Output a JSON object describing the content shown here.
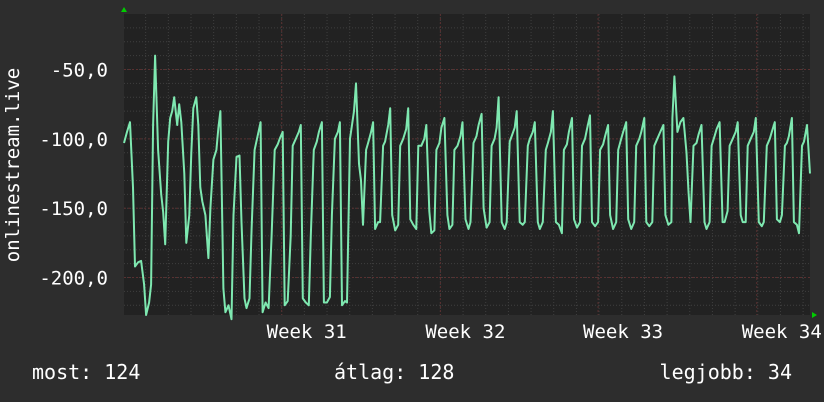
{
  "chart_data": {
    "type": "line",
    "title": "",
    "xlabel": "",
    "ylabel": "onlinestream.live",
    "ylim": [
      -227,
      -10
    ],
    "xlim": [
      0,
      683
    ],
    "yticks": [
      {
        "value": -50,
        "label": "-50,0"
      },
      {
        "value": -100,
        "label": "-100,0"
      },
      {
        "value": -150,
        "label": "-150,0"
      },
      {
        "value": -200,
        "label": "-200,0"
      }
    ],
    "xticks": [
      {
        "value": 157,
        "label": "Week 31"
      },
      {
        "value": 315,
        "label": "Week 32"
      },
      {
        "value": 472,
        "label": "Week 33"
      },
      {
        "value": 630,
        "label": "Week 34"
      }
    ],
    "grid": true,
    "series": [
      {
        "color": "#7ee8b0",
        "points": [
          [
            0,
            -103
          ],
          [
            3,
            -95
          ],
          [
            6,
            -88
          ],
          [
            9,
            -135
          ],
          [
            11,
            -192
          ],
          [
            14,
            -189
          ],
          [
            17,
            -188
          ],
          [
            20,
            -205
          ],
          [
            22,
            -227
          ],
          [
            25,
            -218
          ],
          [
            27,
            -205
          ],
          [
            29,
            -90
          ],
          [
            31,
            -40
          ],
          [
            34,
            -108
          ],
          [
            37,
            -140
          ],
          [
            39,
            -153
          ],
          [
            41,
            -176
          ],
          [
            44,
            -102
          ],
          [
            46,
            -85
          ],
          [
            48,
            -80
          ],
          [
            50,
            -70
          ],
          [
            53,
            -90
          ],
          [
            55,
            -75
          ],
          [
            57,
            -88
          ],
          [
            60,
            -125
          ],
          [
            62,
            -175
          ],
          [
            65,
            -155
          ],
          [
            67,
            -110
          ],
          [
            69,
            -78
          ],
          [
            72,
            -70
          ],
          [
            74,
            -90
          ],
          [
            76,
            -135
          ],
          [
            78,
            -145
          ],
          [
            81,
            -155
          ],
          [
            84,
            -186
          ],
          [
            86,
            -150
          ],
          [
            89,
            -115
          ],
          [
            92,
            -108
          ],
          [
            94,
            -92
          ],
          [
            96,
            -80
          ],
          [
            99,
            -208
          ],
          [
            101,
            -225
          ],
          [
            104,
            -220
          ],
          [
            107,
            -230
          ],
          [
            109,
            -155
          ],
          [
            112,
            -113
          ],
          [
            115,
            -112
          ],
          [
            117,
            -160
          ],
          [
            120,
            -215
          ],
          [
            122,
            -222
          ],
          [
            125,
            -215
          ],
          [
            127,
            -165
          ],
          [
            130,
            -108
          ],
          [
            133,
            -98
          ],
          [
            136,
            -88
          ],
          [
            138,
            -225
          ],
          [
            141,
            -218
          ],
          [
            144,
            -222
          ],
          [
            147,
            -170
          ],
          [
            150,
            -108
          ],
          [
            153,
            -104
          ],
          [
            155,
            -100
          ],
          [
            158,
            -95
          ],
          [
            160,
            -220
          ],
          [
            163,
            -217
          ],
          [
            166,
            -170
          ],
          [
            168,
            -105
          ],
          [
            171,
            -100
          ],
          [
            174,
            -95
          ],
          [
            176,
            -90
          ],
          [
            178,
            -215
          ],
          [
            181,
            -218
          ],
          [
            184,
            -220
          ],
          [
            186,
            -170
          ],
          [
            189,
            -108
          ],
          [
            192,
            -102
          ],
          [
            194,
            -95
          ],
          [
            197,
            -88
          ],
          [
            199,
            -218
          ],
          [
            202,
            -218
          ],
          [
            205,
            -214
          ],
          [
            207,
            -155
          ],
          [
            210,
            -100
          ],
          [
            213,
            -95
          ],
          [
            215,
            -88
          ],
          [
            217,
            -220
          ],
          [
            220,
            -217
          ],
          [
            222,
            -218
          ],
          [
            225,
            -100
          ],
          [
            227,
            -90
          ],
          [
            229,
            -80
          ],
          [
            231,
            -60
          ],
          [
            234,
            -118
          ],
          [
            236,
            -130
          ],
          [
            238,
            -162
          ],
          [
            241,
            -108
          ],
          [
            243,
            -103
          ],
          [
            246,
            -95
          ],
          [
            248,
            -88
          ],
          [
            250,
            -165
          ],
          [
            253,
            -160
          ],
          [
            255,
            -160
          ],
          [
            258,
            -105
          ],
          [
            260,
            -102
          ],
          [
            263,
            -90
          ],
          [
            265,
            -78
          ],
          [
            267,
            -155
          ],
          [
            270,
            -166
          ],
          [
            273,
            -162
          ],
          [
            275,
            -105
          ],
          [
            278,
            -100
          ],
          [
            281,
            -93
          ],
          [
            283,
            -78
          ],
          [
            285,
            -158
          ],
          [
            288,
            -162
          ],
          [
            291,
            -165
          ],
          [
            293,
            -105
          ],
          [
            296,
            -105
          ],
          [
            299,
            -100
          ],
          [
            301,
            -90
          ],
          [
            304,
            -152
          ],
          [
            306,
            -168
          ],
          [
            309,
            -166
          ],
          [
            311,
            -108
          ],
          [
            314,
            -103
          ],
          [
            316,
            -92
          ],
          [
            319,
            -85
          ],
          [
            322,
            -155
          ],
          [
            324,
            -165
          ],
          [
            327,
            -162
          ],
          [
            329,
            -108
          ],
          [
            332,
            -105
          ],
          [
            335,
            -98
          ],
          [
            337,
            -88
          ],
          [
            340,
            -158
          ],
          [
            343,
            -165
          ],
          [
            345,
            -160
          ],
          [
            348,
            -103
          ],
          [
            351,
            -98
          ],
          [
            353,
            -90
          ],
          [
            356,
            -82
          ],
          [
            358,
            -150
          ],
          [
            361,
            -164
          ],
          [
            364,
            -160
          ],
          [
            366,
            -105
          ],
          [
            369,
            -100
          ],
          [
            371,
            -92
          ],
          [
            373,
            -70
          ],
          [
            376,
            -160
          ],
          [
            379,
            -165
          ],
          [
            381,
            -160
          ],
          [
            384,
            -102
          ],
          [
            386,
            -98
          ],
          [
            389,
            -92
          ],
          [
            391,
            -80
          ],
          [
            394,
            -160
          ],
          [
            397,
            -162
          ],
          [
            399,
            -160
          ],
          [
            402,
            -105
          ],
          [
            404,
            -100
          ],
          [
            407,
            -95
          ],
          [
            409,
            -88
          ],
          [
            412,
            -160
          ],
          [
            414,
            -165
          ],
          [
            417,
            -160
          ],
          [
            420,
            -108
          ],
          [
            422,
            -103
          ],
          [
            425,
            -95
          ],
          [
            427,
            -80
          ],
          [
            430,
            -160
          ],
          [
            433,
            -162
          ],
          [
            436,
            -168
          ],
          [
            438,
            -108
          ],
          [
            441,
            -104
          ],
          [
            443,
            -95
          ],
          [
            446,
            -85
          ],
          [
            448,
            -158
          ],
          [
            451,
            -164
          ],
          [
            454,
            -160
          ],
          [
            456,
            -105
          ],
          [
            459,
            -100
          ],
          [
            461,
            -93
          ],
          [
            464,
            -83
          ],
          [
            466,
            -160
          ],
          [
            469,
            -163
          ],
          [
            472,
            -160
          ],
          [
            474,
            -108
          ],
          [
            477,
            -104
          ],
          [
            479,
            -98
          ],
          [
            482,
            -90
          ],
          [
            484,
            -155
          ],
          [
            487,
            -165
          ],
          [
            490,
            -160
          ],
          [
            492,
            -108
          ],
          [
            495,
            -100
          ],
          [
            497,
            -95
          ],
          [
            500,
            -88
          ],
          [
            502,
            -158
          ],
          [
            505,
            -165
          ],
          [
            508,
            -160
          ],
          [
            510,
            -105
          ],
          [
            513,
            -100
          ],
          [
            515,
            -95
          ],
          [
            518,
            -85
          ],
          [
            520,
            -160
          ],
          [
            523,
            -163
          ],
          [
            526,
            -160
          ],
          [
            528,
            -105
          ],
          [
            531,
            -100
          ],
          [
            534,
            -95
          ],
          [
            537,
            -90
          ],
          [
            539,
            -155
          ],
          [
            542,
            -162
          ],
          [
            545,
            -160
          ],
          [
            546,
            -85
          ],
          [
            548,
            -55
          ],
          [
            551,
            -95
          ],
          [
            554,
            -88
          ],
          [
            557,
            -85
          ],
          [
            560,
            -110
          ],
          [
            562,
            -138
          ],
          [
            564,
            -160
          ],
          [
            567,
            -105
          ],
          [
            570,
            -103
          ],
          [
            572,
            -97
          ],
          [
            575,
            -90
          ],
          [
            578,
            -160
          ],
          [
            580,
            -165
          ],
          [
            583,
            -160
          ],
          [
            585,
            -105
          ],
          [
            588,
            -98
          ],
          [
            590,
            -93
          ],
          [
            593,
            -88
          ],
          [
            596,
            -160
          ],
          [
            598,
            -160
          ],
          [
            601,
            -152
          ],
          [
            603,
            -105
          ],
          [
            606,
            -100
          ],
          [
            609,
            -95
          ],
          [
            611,
            -88
          ],
          [
            614,
            -155
          ],
          [
            616,
            -160
          ],
          [
            619,
            -160
          ],
          [
            621,
            -105
          ],
          [
            624,
            -100
          ],
          [
            627,
            -95
          ],
          [
            629,
            -85
          ],
          [
            632,
            -160
          ],
          [
            635,
            -163
          ],
          [
            637,
            -160
          ],
          [
            640,
            -105
          ],
          [
            643,
            -100
          ],
          [
            645,
            -95
          ],
          [
            648,
            -88
          ],
          [
            650,
            -158
          ],
          [
            653,
            -160
          ],
          [
            655,
            -155
          ],
          [
            658,
            -105
          ],
          [
            660,
            -103
          ],
          [
            662,
            -98
          ],
          [
            665,
            -85
          ],
          [
            667,
            -160
          ],
          [
            670,
            -162
          ],
          [
            672,
            -168
          ],
          [
            675,
            -105
          ],
          [
            677,
            -102
          ],
          [
            680,
            -90
          ],
          [
            683,
            -125
          ]
        ]
      }
    ]
  },
  "stats": {
    "current": "most: 124",
    "average": "átlag: 128",
    "best": "legjobb: 34"
  },
  "colors": {
    "background": "#2d2d2d",
    "plot_background": "#222222",
    "grid": "#3f3f3f",
    "line": "#7ee8b0",
    "axis_arrow": "#00cc00",
    "text": "#ffffff"
  }
}
